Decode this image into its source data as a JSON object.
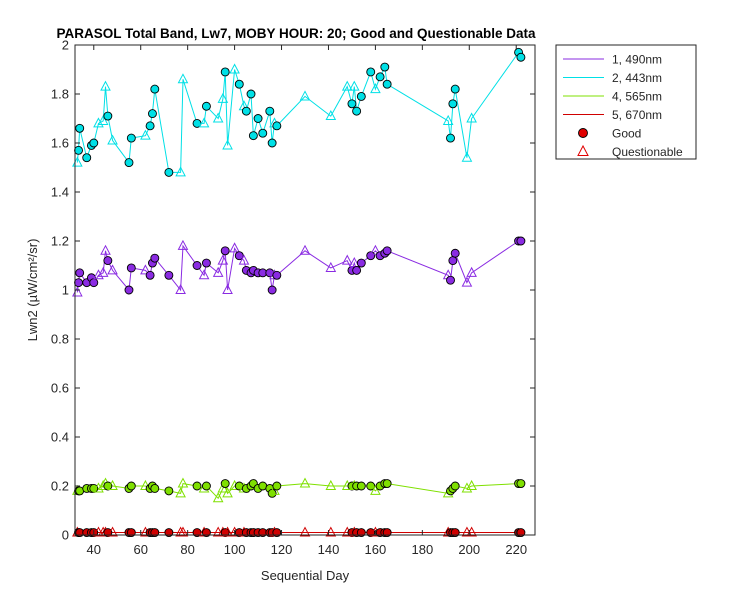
{
  "chart_data": {
    "type": "line",
    "title": "PARASOL Total Band, Lw7, MOBY HOUR: 20;  Good and Questionable Data",
    "xlabel": "Sequential Day",
    "ylabel": "Lwn2 (µW/cm²/sr)",
    "xlim": [
      32,
      228
    ],
    "ylim": [
      0,
      2
    ],
    "xticks": [
      40,
      60,
      80,
      100,
      120,
      140,
      160,
      180,
      200,
      220
    ],
    "yticks": [
      0,
      0.2,
      0.4,
      0.6,
      0.8,
      1,
      1.2,
      1.4,
      1.6,
      1.8,
      2
    ],
    "grid": false,
    "legend_position": "outside-top-right",
    "legend": [
      {
        "label": "1, 490nm",
        "kind": "line",
        "color": "#8a2be2"
      },
      {
        "label": "2, 443nm",
        "kind": "line",
        "color": "#00e0e6"
      },
      {
        "label": "4, 565nm",
        "kind": "line",
        "color": "#7fe000"
      },
      {
        "label": "5, 670nm",
        "kind": "line",
        "color": "#d00000"
      },
      {
        "label": "Good",
        "kind": "marker-circle",
        "color": "#e00000"
      },
      {
        "label": "Questionable",
        "kind": "marker-triangle",
        "color": "#e00000"
      }
    ],
    "series": [
      {
        "name": "2, 443nm",
        "color": "#00e0e6",
        "points": [
          [
            33,
            1.52,
            "q"
          ],
          [
            33.5,
            1.57,
            "g"
          ],
          [
            34,
            1.66,
            "g"
          ],
          [
            37,
            1.54,
            "g"
          ],
          [
            39,
            1.59,
            "g"
          ],
          [
            40,
            1.6,
            "g"
          ],
          [
            42,
            1.68,
            "q"
          ],
          [
            44,
            1.69,
            "q"
          ],
          [
            45,
            1.83,
            "q"
          ],
          [
            46,
            1.71,
            "g"
          ],
          [
            48,
            1.61,
            "q"
          ],
          [
            55,
            1.52,
            "g"
          ],
          [
            56,
            1.62,
            "g"
          ],
          [
            62,
            1.63,
            "q"
          ],
          [
            64,
            1.67,
            "g"
          ],
          [
            65,
            1.72,
            "g"
          ],
          [
            66,
            1.82,
            "g"
          ],
          [
            72,
            1.48,
            "g"
          ],
          [
            77,
            1.48,
            "q"
          ],
          [
            78,
            1.86,
            "q"
          ],
          [
            84,
            1.68,
            "g"
          ],
          [
            87,
            1.68,
            "q"
          ],
          [
            88,
            1.75,
            "g"
          ],
          [
            93,
            1.7,
            "q"
          ],
          [
            95,
            1.78,
            "q"
          ],
          [
            96,
            1.89,
            "g"
          ],
          [
            97,
            1.59,
            "q"
          ],
          [
            100,
            1.9,
            "q"
          ],
          [
            102,
            1.84,
            "g"
          ],
          [
            104,
            1.75,
            "q"
          ],
          [
            105,
            1.73,
            "g"
          ],
          [
            107,
            1.8,
            "g"
          ],
          [
            108,
            1.63,
            "g"
          ],
          [
            110,
            1.7,
            "g"
          ],
          [
            112,
            1.64,
            "g"
          ],
          [
            115,
            1.73,
            "g"
          ],
          [
            116,
            1.6,
            "g"
          ],
          [
            117,
            1.68,
            "q"
          ],
          [
            118,
            1.67,
            "g"
          ],
          [
            130,
            1.79,
            "q"
          ],
          [
            141,
            1.71,
            "q"
          ],
          [
            148,
            1.83,
            "q"
          ],
          [
            150,
            1.76,
            "g"
          ],
          [
            151,
            1.83,
            "q"
          ],
          [
            152,
            1.73,
            "g"
          ],
          [
            154,
            1.79,
            "g"
          ],
          [
            158,
            1.89,
            "g"
          ],
          [
            160,
            1.82,
            "q"
          ],
          [
            162,
            1.87,
            "g"
          ],
          [
            164,
            1.91,
            "g"
          ],
          [
            165,
            1.84,
            "g"
          ],
          [
            191,
            1.69,
            "q"
          ],
          [
            192,
            1.62,
            "g"
          ],
          [
            193,
            1.76,
            "g"
          ],
          [
            194,
            1.82,
            "g"
          ],
          [
            199,
            1.54,
            "q"
          ],
          [
            201,
            1.7,
            "q"
          ],
          [
            221,
            1.97,
            "g"
          ],
          [
            222,
            1.95,
            "g"
          ]
        ]
      },
      {
        "name": "1, 490nm",
        "color": "#8a2be2",
        "points": [
          [
            33,
            0.99,
            "q"
          ],
          [
            33.5,
            1.03,
            "g"
          ],
          [
            34,
            1.07,
            "g"
          ],
          [
            37,
            1.03,
            "g"
          ],
          [
            39,
            1.05,
            "g"
          ],
          [
            40,
            1.03,
            "g"
          ],
          [
            42,
            1.06,
            "q"
          ],
          [
            44,
            1.07,
            "q"
          ],
          [
            45,
            1.16,
            "q"
          ],
          [
            46,
            1.12,
            "g"
          ],
          [
            48,
            1.08,
            "q"
          ],
          [
            55,
            1.0,
            "g"
          ],
          [
            56,
            1.09,
            "g"
          ],
          [
            62,
            1.08,
            "q"
          ],
          [
            64,
            1.06,
            "g"
          ],
          [
            65,
            1.11,
            "g"
          ],
          [
            66,
            1.13,
            "g"
          ],
          [
            72,
            1.06,
            "g"
          ],
          [
            77,
            1.0,
            "q"
          ],
          [
            78,
            1.18,
            "q"
          ],
          [
            84,
            1.1,
            "g"
          ],
          [
            87,
            1.06,
            "q"
          ],
          [
            88,
            1.11,
            "g"
          ],
          [
            93,
            1.07,
            "q"
          ],
          [
            95,
            1.12,
            "q"
          ],
          [
            96,
            1.16,
            "g"
          ],
          [
            97,
            1.0,
            "q"
          ],
          [
            100,
            1.17,
            "q"
          ],
          [
            102,
            1.14,
            "g"
          ],
          [
            104,
            1.12,
            "q"
          ],
          [
            105,
            1.08,
            "g"
          ],
          [
            107,
            1.07,
            "g"
          ],
          [
            108,
            1.08,
            "g"
          ],
          [
            110,
            1.07,
            "g"
          ],
          [
            112,
            1.07,
            "g"
          ],
          [
            115,
            1.07,
            "g"
          ],
          [
            116,
            1.0,
            "g"
          ],
          [
            117,
            1.06,
            "q"
          ],
          [
            118,
            1.06,
            "g"
          ],
          [
            130,
            1.16,
            "q"
          ],
          [
            141,
            1.09,
            "q"
          ],
          [
            148,
            1.12,
            "q"
          ],
          [
            150,
            1.08,
            "g"
          ],
          [
            151,
            1.11,
            "q"
          ],
          [
            152,
            1.08,
            "g"
          ],
          [
            154,
            1.11,
            "g"
          ],
          [
            158,
            1.14,
            "g"
          ],
          [
            160,
            1.16,
            "q"
          ],
          [
            162,
            1.14,
            "g"
          ],
          [
            164,
            1.15,
            "g"
          ],
          [
            165,
            1.16,
            "g"
          ],
          [
            191,
            1.06,
            "q"
          ],
          [
            192,
            1.04,
            "g"
          ],
          [
            193,
            1.12,
            "g"
          ],
          [
            194,
            1.15,
            "g"
          ],
          [
            199,
            1.03,
            "q"
          ],
          [
            201,
            1.07,
            "q"
          ],
          [
            221,
            1.2,
            "g"
          ],
          [
            222,
            1.2,
            "g"
          ]
        ]
      },
      {
        "name": "4, 565nm",
        "color": "#7fe000",
        "points": [
          [
            33,
            0.18,
            "q"
          ],
          [
            33.5,
            0.18,
            "g"
          ],
          [
            34,
            0.18,
            "g"
          ],
          [
            37,
            0.19,
            "g"
          ],
          [
            39,
            0.19,
            "g"
          ],
          [
            40,
            0.19,
            "g"
          ],
          [
            42,
            0.19,
            "q"
          ],
          [
            44,
            0.2,
            "q"
          ],
          [
            45,
            0.21,
            "q"
          ],
          [
            46,
            0.2,
            "g"
          ],
          [
            48,
            0.2,
            "q"
          ],
          [
            55,
            0.19,
            "g"
          ],
          [
            56,
            0.2,
            "g"
          ],
          [
            62,
            0.2,
            "q"
          ],
          [
            64,
            0.19,
            "g"
          ],
          [
            65,
            0.2,
            "g"
          ],
          [
            66,
            0.19,
            "g"
          ],
          [
            72,
            0.18,
            "g"
          ],
          [
            77,
            0.17,
            "q"
          ],
          [
            78,
            0.21,
            "q"
          ],
          [
            84,
            0.2,
            "g"
          ],
          [
            87,
            0.19,
            "q"
          ],
          [
            88,
            0.2,
            "g"
          ],
          [
            93,
            0.15,
            "q"
          ],
          [
            95,
            0.19,
            "q"
          ],
          [
            96,
            0.21,
            "g"
          ],
          [
            97,
            0.17,
            "q"
          ],
          [
            100,
            0.2,
            "q"
          ],
          [
            102,
            0.2,
            "g"
          ],
          [
            104,
            0.19,
            "q"
          ],
          [
            105,
            0.19,
            "g"
          ],
          [
            107,
            0.2,
            "g"
          ],
          [
            108,
            0.21,
            "g"
          ],
          [
            110,
            0.19,
            "g"
          ],
          [
            112,
            0.2,
            "g"
          ],
          [
            115,
            0.19,
            "g"
          ],
          [
            116,
            0.17,
            "g"
          ],
          [
            117,
            0.18,
            "q"
          ],
          [
            118,
            0.2,
            "g"
          ],
          [
            130,
            0.21,
            "q"
          ],
          [
            141,
            0.2,
            "q"
          ],
          [
            148,
            0.2,
            "q"
          ],
          [
            150,
            0.2,
            "g"
          ],
          [
            151,
            0.2,
            "q"
          ],
          [
            152,
            0.2,
            "g"
          ],
          [
            154,
            0.2,
            "g"
          ],
          [
            158,
            0.2,
            "g"
          ],
          [
            160,
            0.18,
            "q"
          ],
          [
            162,
            0.2,
            "g"
          ],
          [
            164,
            0.21,
            "g"
          ],
          [
            165,
            0.21,
            "g"
          ],
          [
            191,
            0.17,
            "q"
          ],
          [
            192,
            0.18,
            "g"
          ],
          [
            193,
            0.19,
            "g"
          ],
          [
            194,
            0.2,
            "g"
          ],
          [
            199,
            0.19,
            "q"
          ],
          [
            201,
            0.2,
            "q"
          ],
          [
            221,
            0.21,
            "g"
          ],
          [
            222,
            0.21,
            "g"
          ]
        ]
      },
      {
        "name": "5, 670nm",
        "color": "#d00000",
        "points": [
          [
            33,
            0.01,
            "q"
          ],
          [
            33.5,
            0.01,
            "g"
          ],
          [
            34,
            0.01,
            "g"
          ],
          [
            37,
            0.01,
            "g"
          ],
          [
            39,
            0.01,
            "g"
          ],
          [
            40,
            0.01,
            "g"
          ],
          [
            42,
            0.01,
            "q"
          ],
          [
            44,
            0.01,
            "q"
          ],
          [
            45,
            0.01,
            "q"
          ],
          [
            46,
            0.01,
            "g"
          ],
          [
            48,
            0.01,
            "q"
          ],
          [
            55,
            0.01,
            "g"
          ],
          [
            56,
            0.01,
            "g"
          ],
          [
            62,
            0.01,
            "q"
          ],
          [
            64,
            0.01,
            "g"
          ],
          [
            65,
            0.01,
            "g"
          ],
          [
            66,
            0.01,
            "g"
          ],
          [
            72,
            0.01,
            "g"
          ],
          [
            77,
            0.01,
            "q"
          ],
          [
            78,
            0.01,
            "q"
          ],
          [
            84,
            0.01,
            "g"
          ],
          [
            87,
            0.01,
            "q"
          ],
          [
            88,
            0.01,
            "g"
          ],
          [
            93,
            0.01,
            "q"
          ],
          [
            95,
            0.01,
            "q"
          ],
          [
            96,
            0.01,
            "g"
          ],
          [
            97,
            0.01,
            "q"
          ],
          [
            100,
            0.01,
            "q"
          ],
          [
            102,
            0.01,
            "g"
          ],
          [
            104,
            0.01,
            "q"
          ],
          [
            105,
            0.01,
            "g"
          ],
          [
            107,
            0.01,
            "g"
          ],
          [
            108,
            0.01,
            "g"
          ],
          [
            110,
            0.01,
            "g"
          ],
          [
            112,
            0.01,
            "g"
          ],
          [
            115,
            0.01,
            "g"
          ],
          [
            116,
            0.01,
            "g"
          ],
          [
            117,
            0.01,
            "q"
          ],
          [
            118,
            0.01,
            "g"
          ],
          [
            130,
            0.01,
            "q"
          ],
          [
            141,
            0.01,
            "q"
          ],
          [
            148,
            0.01,
            "q"
          ],
          [
            150,
            0.01,
            "g"
          ],
          [
            151,
            0.01,
            "q"
          ],
          [
            152,
            0.01,
            "g"
          ],
          [
            154,
            0.01,
            "g"
          ],
          [
            158,
            0.01,
            "g"
          ],
          [
            160,
            0.01,
            "q"
          ],
          [
            162,
            0.01,
            "g"
          ],
          [
            164,
            0.01,
            "g"
          ],
          [
            165,
            0.01,
            "g"
          ],
          [
            191,
            0.01,
            "q"
          ],
          [
            192,
            0.01,
            "g"
          ],
          [
            193,
            0.01,
            "g"
          ],
          [
            194,
            0.01,
            "g"
          ],
          [
            199,
            0.01,
            "q"
          ],
          [
            201,
            0.01,
            "q"
          ],
          [
            221,
            0.01,
            "g"
          ],
          [
            222,
            0.01,
            "g"
          ]
        ]
      }
    ]
  }
}
